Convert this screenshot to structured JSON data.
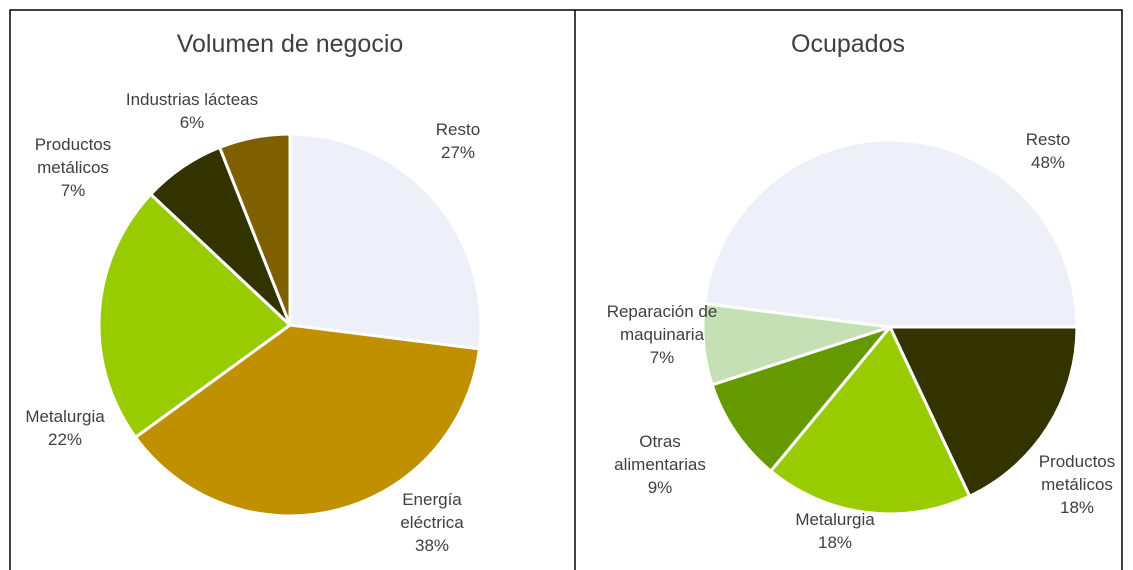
{
  "chart_data": [
    {
      "type": "pie",
      "title": "Volumen de negocio",
      "categories": [
        "Resto",
        "Energía eléctrica",
        "Metalurgia",
        "Productos metálicos",
        "Industrias lácteas"
      ],
      "values": [
        27,
        38,
        22,
        7,
        6
      ],
      "value_labels": [
        "27%",
        "38%",
        "22%",
        "7%",
        "6%"
      ],
      "colors": [
        "#edf0f8",
        "#c09000",
        "#99cc00",
        "#333300",
        "#7f6000"
      ]
    },
    {
      "type": "pie",
      "title": "Ocupados",
      "categories": [
        "Productos metálicos",
        "Metalurgia",
        "Otras alimentarias",
        "Reparación de maquinaria",
        "Resto"
      ],
      "values": [
        18,
        18,
        9,
        7,
        48
      ],
      "value_labels": [
        "18%",
        "18%",
        "9%",
        "7%",
        "48%"
      ],
      "colors": [
        "#333300",
        "#99cc00",
        "#669900",
        "#c5e0b4",
        "#edf0f8"
      ]
    }
  ]
}
